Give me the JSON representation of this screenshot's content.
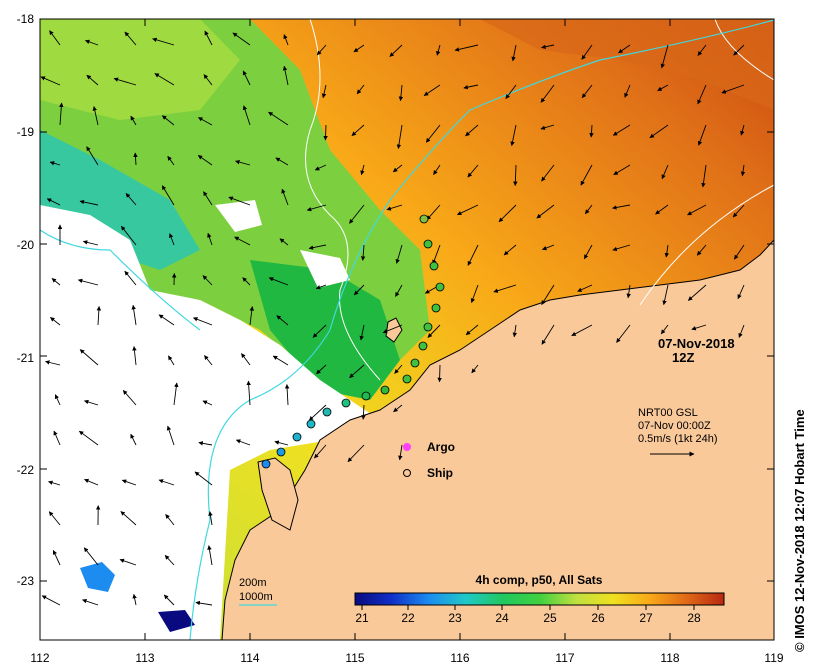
{
  "map": {
    "date_line": "07-Nov-2018",
    "time_line": "12Z",
    "lon_labels": [
      "112",
      "113",
      "114",
      "115",
      "116",
      "117",
      "118",
      "119"
    ],
    "lat_labels": [
      "-18",
      "-19",
      "-20",
      "-21",
      "-22",
      "-23"
    ],
    "lon_range": [
      112,
      119
    ],
    "lat_range": [
      -23.5,
      -18
    ],
    "land_color": "#f9c99a",
    "coast_color": "#000000"
  },
  "current_legend": {
    "source": "NRT00 GSL",
    "date": "07-Nov 00:00Z",
    "scale": "0.5m/s (1kt 24h)"
  },
  "markers_legend": {
    "argo": "Argo",
    "ship": "Ship",
    "argo_color": "#ff40ff"
  },
  "isobaths": {
    "shallow_label": "200m",
    "deep_label": "1000m",
    "shallow_color": "#ffffff",
    "deep_color": "#40d8e0"
  },
  "colorbar": {
    "title": "4h comp, p50, All Sats",
    "labels": [
      "21",
      "22",
      "23",
      "24",
      "25",
      "26",
      "27",
      "28"
    ],
    "range": [
      20.6,
      28.6
    ],
    "colors": [
      "#0a0a80",
      "#1030c8",
      "#1c8cf0",
      "#20c8c8",
      "#20c860",
      "#40d040",
      "#c0e040",
      "#f0e020",
      "#f8a818",
      "#e06818",
      "#b82810"
    ]
  },
  "credit": "© IMOS 12-Nov-2018 12:07 Hobart Time"
}
